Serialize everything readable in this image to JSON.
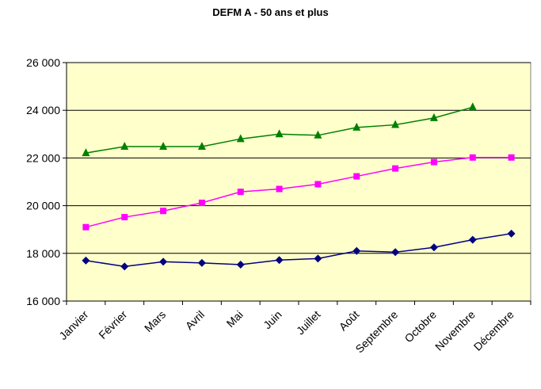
{
  "chart_data": {
    "type": "line",
    "title": "DEFM A - 50 ans et plus",
    "categories": [
      "Janvier",
      "Février",
      "Mars",
      "Avril",
      "Mai",
      "Juin",
      "Juillet",
      "Août",
      "Septembre",
      "Octobre",
      "Novembre",
      "Décembre"
    ],
    "ylim": [
      16000,
      26000
    ],
    "yticks": [
      "16 000",
      "18 000",
      "20 000",
      "22 000",
      "24 000",
      "26 000"
    ],
    "ytick_values": [
      16000,
      18000,
      20000,
      22000,
      24000,
      26000
    ],
    "grid": true,
    "legend": "none",
    "colors": {
      "plot_bg": "#FFFFCC",
      "gridline": "#000000"
    },
    "series": [
      {
        "color": "#000080",
        "marker": "diamond",
        "values": [
          17700,
          17450,
          17650,
          17600,
          17530,
          17720,
          17780,
          18100,
          18050,
          18250,
          18570,
          18830
        ]
      },
      {
        "color": "#FF00FF",
        "marker": "square",
        "values": [
          19100,
          19520,
          19780,
          20120,
          20580,
          20700,
          20900,
          21230,
          21560,
          21830,
          22020,
          22020
        ]
      },
      {
        "color": "#008000",
        "marker": "triangle",
        "values": [
          22210,
          22480,
          22480,
          22480,
          22800,
          23000,
          22950,
          23280,
          23390,
          23680,
          24130,
          null
        ]
      }
    ]
  }
}
